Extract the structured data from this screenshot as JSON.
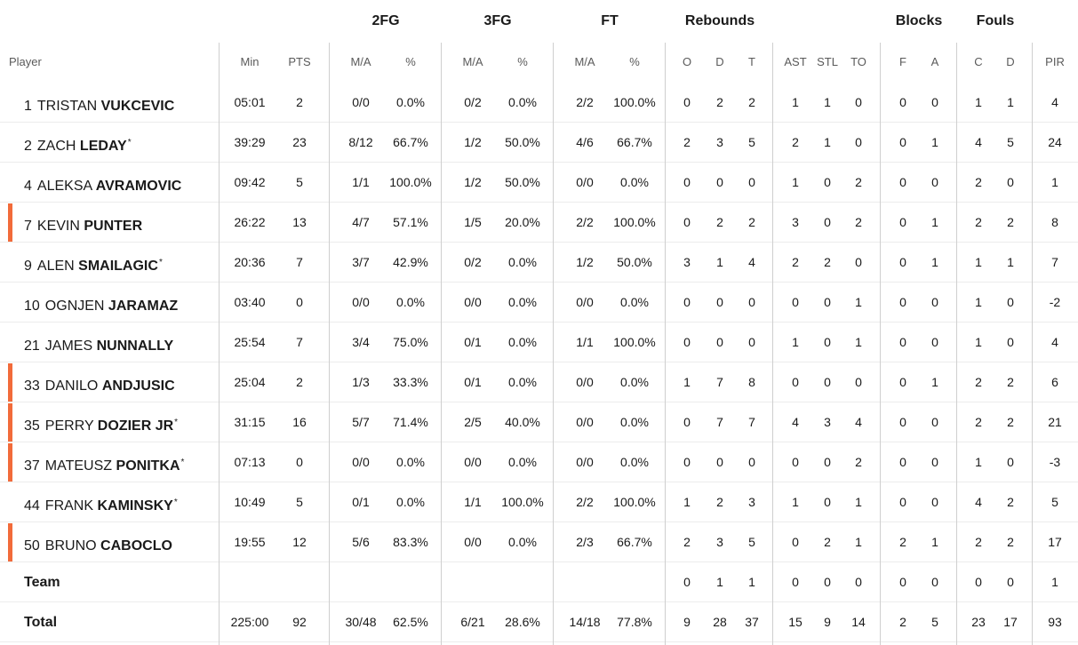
{
  "group_headers": {
    "fg2": "2FG",
    "fg3": "3FG",
    "ft": "FT",
    "rebounds": "Rebounds",
    "blocks": "Blocks",
    "fouls": "Fouls"
  },
  "columns": {
    "player": "Player",
    "min": "Min",
    "pts": "PTS",
    "fg2_ma": "M/A",
    "fg2_pct": "%",
    "fg3_ma": "M/A",
    "fg3_pct": "%",
    "ft_ma": "M/A",
    "ft_pct": "%",
    "reb_o": "O",
    "reb_d": "D",
    "reb_t": "T",
    "ast": "AST",
    "stl": "STL",
    "to": "TO",
    "blk_f": "F",
    "blk_a": "A",
    "foul_c": "C",
    "foul_d": "D",
    "pir": "PIR"
  },
  "accent_color": "#f26b3a",
  "players": [
    {
      "num": "1",
      "first": "TRISTAN",
      "last": "VUKCEVIC",
      "star": "",
      "highlight": false,
      "min": "05:01",
      "pts": "2",
      "fg2_ma": "0/0",
      "fg2_pct": "0.0%",
      "fg3_ma": "0/2",
      "fg3_pct": "0.0%",
      "ft_ma": "2/2",
      "ft_pct": "100.0%",
      "reb_o": "0",
      "reb_d": "2",
      "reb_t": "2",
      "ast": "1",
      "stl": "1",
      "to": "0",
      "blk_f": "0",
      "blk_a": "0",
      "foul_c": "1",
      "foul_d": "1",
      "pir": "4"
    },
    {
      "num": "2",
      "first": "ZACH",
      "last": "LEDAY",
      "star": "*",
      "highlight": false,
      "min": "39:29",
      "pts": "23",
      "fg2_ma": "8/12",
      "fg2_pct": "66.7%",
      "fg3_ma": "1/2",
      "fg3_pct": "50.0%",
      "ft_ma": "4/6",
      "ft_pct": "66.7%",
      "reb_o": "2",
      "reb_d": "3",
      "reb_t": "5",
      "ast": "2",
      "stl": "1",
      "to": "0",
      "blk_f": "0",
      "blk_a": "1",
      "foul_c": "4",
      "foul_d": "5",
      "pir": "24"
    },
    {
      "num": "4",
      "first": "ALEKSA",
      "last": "AVRAMOVIC",
      "star": "",
      "highlight": false,
      "min": "09:42",
      "pts": "5",
      "fg2_ma": "1/1",
      "fg2_pct": "100.0%",
      "fg3_ma": "1/2",
      "fg3_pct": "50.0%",
      "ft_ma": "0/0",
      "ft_pct": "0.0%",
      "reb_o": "0",
      "reb_d": "0",
      "reb_t": "0",
      "ast": "1",
      "stl": "0",
      "to": "2",
      "blk_f": "0",
      "blk_a": "0",
      "foul_c": "2",
      "foul_d": "0",
      "pir": "1"
    },
    {
      "num": "7",
      "first": "KEVIN",
      "last": "PUNTER",
      "star": "",
      "highlight": true,
      "min": "26:22",
      "pts": "13",
      "fg2_ma": "4/7",
      "fg2_pct": "57.1%",
      "fg3_ma": "1/5",
      "fg3_pct": "20.0%",
      "ft_ma": "2/2",
      "ft_pct": "100.0%",
      "reb_o": "0",
      "reb_d": "2",
      "reb_t": "2",
      "ast": "3",
      "stl": "0",
      "to": "2",
      "blk_f": "0",
      "blk_a": "1",
      "foul_c": "2",
      "foul_d": "2",
      "pir": "8"
    },
    {
      "num": "9",
      "first": "ALEN",
      "last": "SMAILAGIC",
      "star": "*",
      "highlight": false,
      "min": "20:36",
      "pts": "7",
      "fg2_ma": "3/7",
      "fg2_pct": "42.9%",
      "fg3_ma": "0/2",
      "fg3_pct": "0.0%",
      "ft_ma": "1/2",
      "ft_pct": "50.0%",
      "reb_o": "3",
      "reb_d": "1",
      "reb_t": "4",
      "ast": "2",
      "stl": "2",
      "to": "0",
      "blk_f": "0",
      "blk_a": "1",
      "foul_c": "1",
      "foul_d": "1",
      "pir": "7"
    },
    {
      "num": "10",
      "first": "OGNJEN",
      "last": "JARAMAZ",
      "star": "",
      "highlight": false,
      "min": "03:40",
      "pts": "0",
      "fg2_ma": "0/0",
      "fg2_pct": "0.0%",
      "fg3_ma": "0/0",
      "fg3_pct": "0.0%",
      "ft_ma": "0/0",
      "ft_pct": "0.0%",
      "reb_o": "0",
      "reb_d": "0",
      "reb_t": "0",
      "ast": "0",
      "stl": "0",
      "to": "1",
      "blk_f": "0",
      "blk_a": "0",
      "foul_c": "1",
      "foul_d": "0",
      "pir": "-2"
    },
    {
      "num": "21",
      "first": "JAMES",
      "last": "NUNNALLY",
      "star": "",
      "highlight": false,
      "min": "25:54",
      "pts": "7",
      "fg2_ma": "3/4",
      "fg2_pct": "75.0%",
      "fg3_ma": "0/1",
      "fg3_pct": "0.0%",
      "ft_ma": "1/1",
      "ft_pct": "100.0%",
      "reb_o": "0",
      "reb_d": "0",
      "reb_t": "0",
      "ast": "1",
      "stl": "0",
      "to": "1",
      "blk_f": "0",
      "blk_a": "0",
      "foul_c": "1",
      "foul_d": "0",
      "pir": "4"
    },
    {
      "num": "33",
      "first": "DANILO",
      "last": "ANDJUSIC",
      "star": "",
      "highlight": true,
      "min": "25:04",
      "pts": "2",
      "fg2_ma": "1/3",
      "fg2_pct": "33.3%",
      "fg3_ma": "0/1",
      "fg3_pct": "0.0%",
      "ft_ma": "0/0",
      "ft_pct": "0.0%",
      "reb_o": "1",
      "reb_d": "7",
      "reb_t": "8",
      "ast": "0",
      "stl": "0",
      "to": "0",
      "blk_f": "0",
      "blk_a": "1",
      "foul_c": "2",
      "foul_d": "2",
      "pir": "6"
    },
    {
      "num": "35",
      "first": "PERRY",
      "last": "DOZIER JR",
      "star": "*",
      "highlight": true,
      "min": "31:15",
      "pts": "16",
      "fg2_ma": "5/7",
      "fg2_pct": "71.4%",
      "fg3_ma": "2/5",
      "fg3_pct": "40.0%",
      "ft_ma": "0/0",
      "ft_pct": "0.0%",
      "reb_o": "0",
      "reb_d": "7",
      "reb_t": "7",
      "ast": "4",
      "stl": "3",
      "to": "4",
      "blk_f": "0",
      "blk_a": "0",
      "foul_c": "2",
      "foul_d": "2",
      "pir": "21"
    },
    {
      "num": "37",
      "first": "MATEUSZ",
      "last": "PONITKA",
      "star": "*",
      "highlight": true,
      "min": "07:13",
      "pts": "0",
      "fg2_ma": "0/0",
      "fg2_pct": "0.0%",
      "fg3_ma": "0/0",
      "fg3_pct": "0.0%",
      "ft_ma": "0/0",
      "ft_pct": "0.0%",
      "reb_o": "0",
      "reb_d": "0",
      "reb_t": "0",
      "ast": "0",
      "stl": "0",
      "to": "2",
      "blk_f": "0",
      "blk_a": "0",
      "foul_c": "1",
      "foul_d": "0",
      "pir": "-3"
    },
    {
      "num": "44",
      "first": "FRANK",
      "last": "KAMINSKY",
      "star": "*",
      "highlight": false,
      "min": "10:49",
      "pts": "5",
      "fg2_ma": "0/1",
      "fg2_pct": "0.0%",
      "fg3_ma": "1/1",
      "fg3_pct": "100.0%",
      "ft_ma": "2/2",
      "ft_pct": "100.0%",
      "reb_o": "1",
      "reb_d": "2",
      "reb_t": "3",
      "ast": "1",
      "stl": "0",
      "to": "1",
      "blk_f": "0",
      "blk_a": "0",
      "foul_c": "4",
      "foul_d": "2",
      "pir": "5"
    },
    {
      "num": "50",
      "first": "BRUNO",
      "last": "CABOCLO",
      "star": "",
      "highlight": true,
      "min": "19:55",
      "pts": "12",
      "fg2_ma": "5/6",
      "fg2_pct": "83.3%",
      "fg3_ma": "0/0",
      "fg3_pct": "0.0%",
      "ft_ma": "2/3",
      "ft_pct": "66.7%",
      "reb_o": "2",
      "reb_d": "3",
      "reb_t": "5",
      "ast": "0",
      "stl": "2",
      "to": "1",
      "blk_f": "2",
      "blk_a": "1",
      "foul_c": "2",
      "foul_d": "2",
      "pir": "17"
    }
  ],
  "team_row": {
    "label": "Team",
    "min": "",
    "pts": "",
    "fg2_ma": "",
    "fg2_pct": "",
    "fg3_ma": "",
    "fg3_pct": "",
    "ft_ma": "",
    "ft_pct": "",
    "reb_o": "0",
    "reb_d": "1",
    "reb_t": "1",
    "ast": "0",
    "stl": "0",
    "to": "0",
    "blk_f": "0",
    "blk_a": "0",
    "foul_c": "0",
    "foul_d": "0",
    "pir": "1"
  },
  "total_row": {
    "label": "Total",
    "min": "225:00",
    "pts": "92",
    "fg2_ma": "30/48",
    "fg2_pct": "62.5%",
    "fg3_ma": "6/21",
    "fg3_pct": "28.6%",
    "ft_ma": "14/18",
    "ft_pct": "77.8%",
    "reb_o": "9",
    "reb_d": "28",
    "reb_t": "37",
    "ast": "15",
    "stl": "9",
    "to": "14",
    "blk_f": "2",
    "blk_a": "5",
    "foul_c": "23",
    "foul_d": "17",
    "pir": "93"
  }
}
